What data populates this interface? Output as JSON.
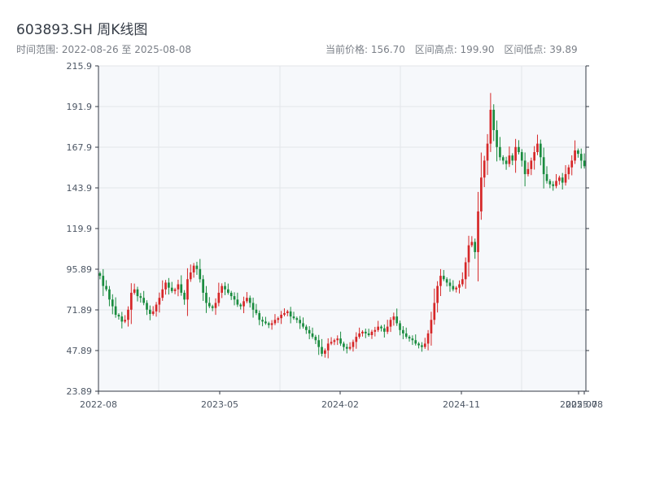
{
  "header": {
    "title": "603893.SH 周K线图",
    "range_label": "时间范围: 2022-08-26 至 2025-08-08",
    "current_price_label": "当前价格: 156.70",
    "high_label": "区间高点: 199.90",
    "low_label": "区间低点: 39.89"
  },
  "colors": {
    "up": "#d62728",
    "down": "#1a8c3f",
    "plot_bg": "#f6f8fb",
    "grid": "#e3e6ea",
    "axis": "#333a44"
  },
  "chart_data": {
    "type": "candlestick",
    "title": "603893.SH 周K线图",
    "date_range": [
      "2022-08-26",
      "2025-08-08"
    ],
    "ylim": [
      23.89,
      215.9
    ],
    "y_ticks": [
      "23.89",
      "47.89",
      "71.89",
      "95.89",
      "119.9",
      "143.9",
      "167.9",
      "191.9",
      "215.9"
    ],
    "x_ticks": [
      "2022-08",
      "2023-05",
      "2024-02",
      "2024-11",
      "2025-07",
      "2025-08"
    ],
    "grid": true,
    "close_values": [
      92.0,
      86.0,
      84.0,
      78.0,
      74.0,
      69.0,
      68.0,
      65.0,
      66.0,
      72.0,
      82.0,
      84.0,
      80.0,
      79.0,
      76.0,
      72.0,
      69.5,
      71.0,
      75.0,
      79.0,
      84.0,
      88.0,
      85.0,
      83.0,
      84.0,
      87.0,
      82.0,
      78.0,
      90.0,
      94.0,
      98.0,
      96.0,
      90.0,
      82.0,
      76.0,
      74.0,
      73.0,
      76.0,
      82.0,
      86.0,
      84.0,
      82.0,
      80.0,
      78.0,
      75.0,
      74.0,
      77.0,
      79.0,
      76.0,
      72.0,
      70.0,
      66.0,
      65.0,
      64.0,
      63.0,
      64.0,
      66.0,
      67.0,
      69.0,
      70.0,
      71.0,
      68.0,
      67.0,
      66.0,
      64.0,
      62.0,
      60.0,
      58.0,
      56.0,
      54.0,
      50.0,
      46.0,
      48.0,
      52.0,
      53.0,
      54.0,
      55.0,
      52.0,
      50.0,
      49.0,
      50.0,
      53.0,
      56.0,
      58.0,
      59.0,
      58.0,
      57.0,
      59.0,
      60.0,
      62.0,
      61.0,
      59.0,
      62.0,
      66.0,
      68.0,
      64.0,
      60.0,
      58.0,
      56.0,
      55.0,
      54.0,
      52.0,
      51.0,
      50.0,
      52.0,
      58.0,
      66.0,
      76.0,
      86.0,
      92.0,
      90.0,
      88.0,
      86.0,
      84.0,
      85.0,
      87.0,
      90.0,
      100.0,
      110.0,
      112.0,
      106.0,
      130.0,
      150.0,
      160.0,
      170.0,
      190.0,
      178.0,
      168.0,
      162.0,
      160.0,
      158.0,
      163.0,
      160.0,
      168.0,
      165.0,
      160.0,
      152.0,
      155.0,
      160.0,
      165.0,
      170.0,
      162.0,
      152.0,
      148.0,
      146.0,
      145.0,
      148.0,
      150.0,
      147.0,
      152.0,
      156.0,
      160.0,
      166.0,
      164.0,
      160.0,
      156.7
    ],
    "high": 199.9,
    "low": 39.89,
    "last_close": 156.7
  }
}
